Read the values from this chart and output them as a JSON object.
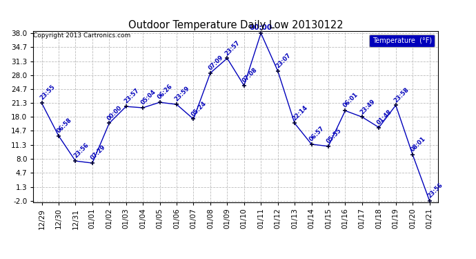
{
  "title": "Outdoor Temperature Daily Low 20130122",
  "copyright": "Copyright 2013 Cartronics.com",
  "legend_label": "Temperature  (°F)",
  "x_labels": [
    "12/29",
    "12/30",
    "12/31",
    "01/01",
    "01/02",
    "01/03",
    "01/04",
    "01/05",
    "01/06",
    "01/07",
    "01/08",
    "01/09",
    "01/10",
    "01/11",
    "01/12",
    "01/13",
    "01/14",
    "01/15",
    "01/16",
    "01/17",
    "01/18",
    "01/19",
    "01/20",
    "01/21"
  ],
  "y_ticks": [
    -2.0,
    1.3,
    4.7,
    8.0,
    11.3,
    14.7,
    18.0,
    21.3,
    24.7,
    28.0,
    31.3,
    34.7,
    38.0
  ],
  "data_values": [
    21.3,
    13.5,
    7.5,
    7.0,
    16.5,
    20.5,
    20.2,
    21.5,
    21.0,
    17.5,
    28.5,
    32.0,
    25.5,
    38.0,
    29.0,
    16.5,
    11.5,
    11.0,
    19.5,
    18.0,
    15.5,
    20.8,
    9.0,
    -2.0
  ],
  "data_labels": [
    "23:55",
    "06:58",
    "23:56",
    "07:29",
    "00:00",
    "23:57",
    "05:04",
    "06:26",
    "23:59",
    "05:24",
    "07:09",
    "23:57",
    "07:08",
    "00:00",
    "23:07",
    "22:14",
    "06:57",
    "05:55",
    "06:01",
    "23:49",
    "01:48",
    "23:58",
    "08:01",
    "23:56"
  ],
  "line_color": "#0000bb",
  "marker_color": "#000033",
  "label_color": "#0000bb",
  "bg_color": "#ffffff",
  "grid_color": "#bbbbbb",
  "title_color": "#000000",
  "copyright_color": "#000000",
  "legend_bg": "#0000bb",
  "legend_fg": "#ffffff",
  "ylim_min": -2.0,
  "ylim_max": 38.0,
  "highlight_label_idx": 13
}
